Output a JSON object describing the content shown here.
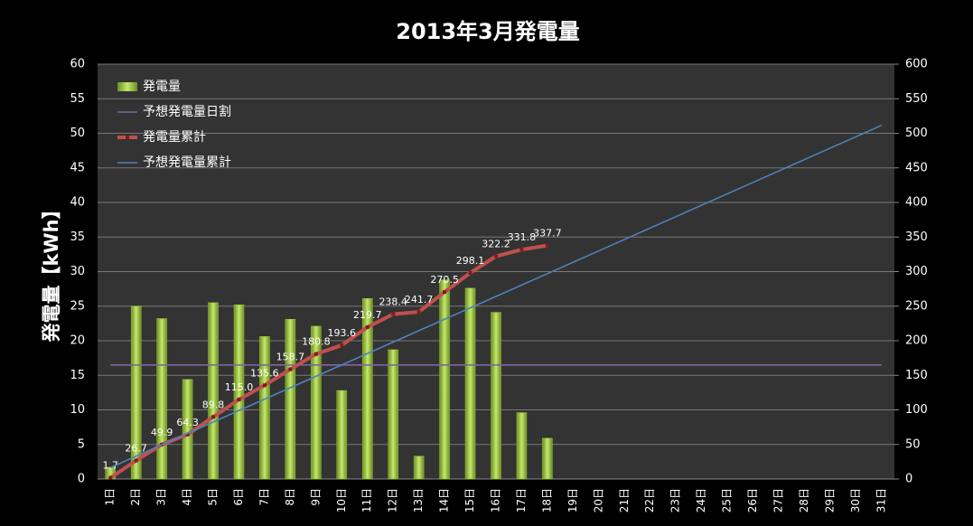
{
  "chart_data": {
    "type": "combo",
    "title": "2013年3月発電量",
    "ylabel": "発電量【kWh】",
    "categories": [
      "1日",
      "2日",
      "3日",
      "4日",
      "5日",
      "6日",
      "7日",
      "8日",
      "9日",
      "10日",
      "11日",
      "12日",
      "13日",
      "14日",
      "15日",
      "16日",
      "17日",
      "18日",
      "19日",
      "20日",
      "21日",
      "22日",
      "23日",
      "24日",
      "25日",
      "26日",
      "27日",
      "28日",
      "29日",
      "30日",
      "31日"
    ],
    "ylim": [
      0,
      60
    ],
    "yticks": [
      0,
      5,
      10,
      15,
      20,
      25,
      30,
      35,
      40,
      45,
      50,
      55,
      60
    ],
    "y2lim": [
      0,
      600
    ],
    "y2ticks": [
      0,
      50,
      100,
      150,
      200,
      250,
      300,
      350,
      400,
      450,
      500,
      550,
      600
    ],
    "grid": true,
    "legend": "top-left",
    "series": [
      {
        "name": "発電量",
        "type": "bar",
        "color": "#9acd32",
        "values": [
          1.7,
          25.0,
          23.2,
          14.4,
          25.5,
          25.2,
          20.6,
          23.1,
          22.1,
          12.8,
          26.1,
          18.7,
          3.3,
          28.8,
          27.6,
          24.1,
          9.6,
          5.9,
          null,
          null,
          null,
          null,
          null,
          null,
          null,
          null,
          null,
          null,
          null,
          null,
          null
        ]
      },
      {
        "name": "予想発電量日割",
        "type": "line",
        "color": "#8064a2",
        "values": [
          16.5,
          16.5,
          16.5,
          16.5,
          16.5,
          16.5,
          16.5,
          16.5,
          16.5,
          16.5,
          16.5,
          16.5,
          16.5,
          16.5,
          16.5,
          16.5,
          16.5,
          16.5,
          16.5,
          16.5,
          16.5,
          16.5,
          16.5,
          16.5,
          16.5,
          16.5,
          16.5,
          16.5,
          16.5,
          16.5,
          16.5
        ]
      },
      {
        "name": "発電量累計",
        "type": "line",
        "color": "#c0504d",
        "axis": "y2",
        "markers": true,
        "values": [
          1.7,
          26.7,
          49.9,
          64.3,
          89.8,
          115.0,
          135.6,
          158.7,
          180.8,
          193.6,
          219.7,
          238.4,
          241.7,
          270.5,
          298.1,
          322.2,
          331.8,
          337.7,
          null,
          null,
          null,
          null,
          null,
          null,
          null,
          null,
          null,
          null,
          null,
          null,
          null
        ],
        "value_labels": [
          "1.7",
          "26.7",
          "49.9",
          "64.3",
          "89.8",
          "115.0",
          "135.6",
          "158.7",
          "180.8",
          "193.6",
          "219.7",
          "238.4",
          "241.7",
          "270.5",
          "298.1",
          "322.2",
          "331.8",
          "337.7",
          null,
          null,
          null,
          null,
          null,
          null,
          null,
          null,
          null,
          null,
          null,
          null,
          null
        ]
      },
      {
        "name": "予想発電量累計",
        "type": "line",
        "color": "#4f81bd",
        "axis": "y2",
        "values": [
          16.5,
          33,
          49.5,
          66,
          82.5,
          99,
          115.5,
          132,
          148.5,
          165,
          181.5,
          198,
          214.5,
          231,
          247.5,
          264,
          280.5,
          297,
          313.5,
          330,
          346.5,
          363,
          379.5,
          396,
          412.5,
          429,
          445.5,
          462,
          478.5,
          495,
          511.5
        ]
      }
    ]
  }
}
